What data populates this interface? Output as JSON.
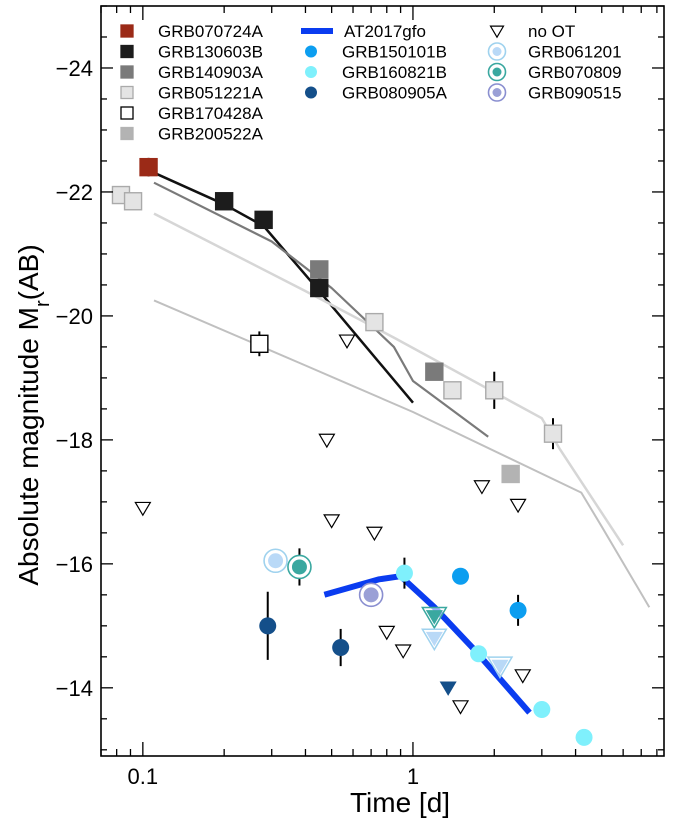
{
  "chart_data": {
    "type": "scatter",
    "title": "",
    "xlabel": "Time [d]",
    "ylabel_main": "Absolute magnitude  M",
    "ylabel_sub": "r",
    "ylabel_tail": "(AB)",
    "x_scale": "log",
    "xlim": [
      0.07,
      8.5
    ],
    "ylim": [
      -12.9,
      -25
    ],
    "y_inverted": true,
    "x_ticks": [
      {
        "value": 0.1,
        "label": "0.1"
      },
      {
        "value": 1,
        "label": "1"
      }
    ],
    "y_ticks": [
      {
        "value": -24,
        "label": "−24"
      },
      {
        "value": -22,
        "label": "−22"
      },
      {
        "value": -20,
        "label": "−20"
      },
      {
        "value": -18,
        "label": "−18"
      },
      {
        "value": -16,
        "label": "−16"
      },
      {
        "value": -14,
        "label": "−14"
      }
    ],
    "legend": [
      {
        "label": "GRB070724A",
        "marker": "square",
        "color": "#9b2a17",
        "col": 0,
        "row": 0
      },
      {
        "label": "GRB130603B",
        "marker": "square",
        "color": "#1c1c1c",
        "col": 0,
        "row": 1
      },
      {
        "label": "GRB140903A",
        "marker": "square",
        "color": "#7a7a7a",
        "col": 0,
        "row": 2
      },
      {
        "label": "GRB051221A",
        "marker": "square",
        "color": "#e4e4e4",
        "stroke": "#aaaaaa",
        "col": 0,
        "row": 3
      },
      {
        "label": "GRB170428A",
        "marker": "square-open",
        "color": "#ffffff",
        "stroke": "#000000",
        "col": 0,
        "row": 4
      },
      {
        "label": "GRB200522A",
        "marker": "square",
        "color": "#b3b3b3",
        "col": 0,
        "row": 5
      },
      {
        "label": "AT2017gfo",
        "marker": "line",
        "color": "#0a3cf0",
        "col": 1,
        "row": 0
      },
      {
        "label": "GRB150101B",
        "marker": "circle",
        "color": "#0c9ef0",
        "col": 1,
        "row": 1
      },
      {
        "label": "GRB160821B",
        "marker": "circle",
        "color": "#7ff0fc",
        "col": 1,
        "row": 2
      },
      {
        "label": "GRB080905A",
        "marker": "circle",
        "color": "#144f8a",
        "col": 1,
        "row": 3
      },
      {
        "label": "no OT",
        "marker": "triangle-open",
        "color": "#ffffff",
        "stroke": "#000000",
        "col": 2,
        "row": 0
      },
      {
        "label": "GRB061201",
        "marker": "ringed",
        "color": "#b9d9f7",
        "ring": "#9fd2ee",
        "col": 2,
        "row": 1
      },
      {
        "label": "GRB070809",
        "marker": "ringed",
        "color": "#3aa8a0",
        "ring": "#3aa8a0",
        "col": 2,
        "row": 2
      },
      {
        "label": "GRB090515",
        "marker": "ringed",
        "color": "#9aa0d6",
        "ring": "#8a8fd0",
        "col": 2,
        "row": 3
      }
    ],
    "models": [
      {
        "name": "GRB130603B",
        "color": "#111111",
        "width": 2.5,
        "x": [
          0.105,
          0.2,
          0.28,
          0.45,
          1.0
        ],
        "y": [
          -22.35,
          -21.8,
          -21.45,
          -20.4,
          -18.6
        ]
      },
      {
        "name": "GRB140903A",
        "color": "#7a7a7a",
        "width": 2.2,
        "x": [
          0.11,
          0.3,
          0.5,
          0.85,
          1.0,
          1.9
        ],
        "y": [
          -22.15,
          -21.2,
          -20.45,
          -19.5,
          -18.95,
          -18.05
        ]
      },
      {
        "name": "GRB051221A",
        "color": "#d6d6d6",
        "width": 2.5,
        "x": [
          0.11,
          0.4,
          0.85,
          3.0,
          3.5,
          6.0
        ],
        "y": [
          -21.65,
          -20.4,
          -19.65,
          -18.35,
          -17.85,
          -16.3
        ]
      },
      {
        "name": "GRB170428A",
        "color": "#c0c0c0",
        "width": 2.0,
        "x": [
          0.11,
          0.4,
          1.0,
          4.2,
          5.0,
          7.5
        ],
        "y": [
          -20.25,
          -19.2,
          -18.45,
          -17.15,
          -16.6,
          -15.3
        ]
      }
    ],
    "at2017gfo": {
      "name": "AT2017gfo",
      "color": "#0a3cf0",
      "width": 6,
      "x": [
        0.47,
        0.75,
        0.9,
        1.2,
        1.7,
        2.7
      ],
      "y": [
        -15.5,
        -15.75,
        -15.8,
        -15.3,
        -14.6,
        -13.6
      ]
    },
    "squares": [
      {
        "name": "GRB070724A",
        "x": 0.105,
        "y": -22.4,
        "fill": "#9b2a17",
        "stroke": "#9b2a17",
        "err": 0.15
      },
      {
        "name": "GRB130603B",
        "x": 0.2,
        "y": -21.85,
        "fill": "#1c1c1c",
        "stroke": "#1c1c1c"
      },
      {
        "name": "GRB130603B",
        "x": 0.28,
        "y": -21.55,
        "fill": "#1c1c1c",
        "stroke": "#1c1c1c"
      },
      {
        "name": "GRB130603B",
        "x": 0.45,
        "y": -20.45,
        "fill": "#1c1c1c",
        "stroke": "#1c1c1c"
      },
      {
        "name": "GRB140903A",
        "x": 0.45,
        "y": -20.75,
        "fill": "#7a7a7a",
        "stroke": "#7a7a7a"
      },
      {
        "name": "GRB140903A",
        "x": 1.2,
        "y": -19.1,
        "fill": "#7a7a7a",
        "stroke": "#7a7a7a"
      },
      {
        "name": "GRB051221A",
        "x": 0.083,
        "y": -21.95,
        "fill": "#e4e4e4",
        "stroke": "#aaaaaa"
      },
      {
        "name": "GRB051221A",
        "x": 0.092,
        "y": -21.85,
        "fill": "#e4e4e4",
        "stroke": "#aaaaaa"
      },
      {
        "name": "GRB051221A",
        "x": 0.72,
        "y": -19.9,
        "fill": "#e4e4e4",
        "stroke": "#aaaaaa"
      },
      {
        "name": "GRB051221A",
        "x": 1.4,
        "y": -18.8,
        "fill": "#e4e4e4",
        "stroke": "#aaaaaa"
      },
      {
        "name": "GRB051221A",
        "x": 2.0,
        "y": -18.8,
        "fill": "#e4e4e4",
        "stroke": "#aaaaaa",
        "err": 0.3
      },
      {
        "name": "GRB051221A",
        "x": 3.3,
        "y": -18.1,
        "fill": "#e4e4e4",
        "stroke": "#aaaaaa",
        "err": 0.25
      },
      {
        "name": "GRB170428A",
        "x": 0.27,
        "y": -19.55,
        "fill": "#ffffff",
        "stroke": "#000000",
        "err": 0.2
      },
      {
        "name": "GRB200522A",
        "x": 2.3,
        "y": -17.45,
        "fill": "#b3b3b3",
        "stroke": "#b3b3b3"
      }
    ],
    "upper_limits": [
      {
        "x": 0.1,
        "y": -16.9
      },
      {
        "x": 0.57,
        "y": -19.6
      },
      {
        "x": 0.48,
        "y": -18.0
      },
      {
        "x": 0.5,
        "y": -16.7
      },
      {
        "x": 0.72,
        "y": -16.5
      },
      {
        "x": 0.8,
        "y": -14.9
      },
      {
        "x": 0.92,
        "y": -14.6
      },
      {
        "x": 1.5,
        "y": -13.7
      },
      {
        "x": 1.8,
        "y": -17.25
      },
      {
        "x": 2.45,
        "y": -16.95
      },
      {
        "x": 2.55,
        "y": -14.2
      }
    ],
    "circles": [
      {
        "name": "GRB080905A",
        "x": 0.29,
        "y": -15.0,
        "fill": "#144f8a",
        "err": 0.55
      },
      {
        "name": "GRB080905A",
        "x": 0.54,
        "y": -14.65,
        "fill": "#144f8a",
        "err": 0.3
      },
      {
        "name": "GRB150101B",
        "x": 1.5,
        "y": -15.8,
        "fill": "#0c9ef0"
      },
      {
        "name": "GRB150101B",
        "x": 2.45,
        "y": -15.25,
        "fill": "#0c9ef0",
        "err": 0.25
      },
      {
        "name": "GRB160821B",
        "x": 0.93,
        "y": -15.85,
        "fill": "#7ff0fc",
        "err": 0.25
      },
      {
        "name": "GRB160821B",
        "x": 1.75,
        "y": -14.55,
        "fill": "#7ff0fc"
      },
      {
        "name": "GRB160821B",
        "x": 3.0,
        "y": -13.65,
        "fill": "#7ff0fc"
      },
      {
        "name": "GRB160821B",
        "x": 4.3,
        "y": -13.2,
        "fill": "#7ff0fc"
      }
    ],
    "ringed": [
      {
        "name": "GRB061201",
        "x": 0.31,
        "y": -16.05,
        "fill": "#b9d9f7",
        "ring": "#9fd2ee"
      },
      {
        "name": "GRB070809",
        "x": 0.38,
        "y": -15.95,
        "fill": "#3aa8a0",
        "ring": "#3aa8a0",
        "err": 0.3
      },
      {
        "name": "GRB090515",
        "x": 0.7,
        "y": -15.5,
        "fill": "#9aa0d6",
        "ring": "#8a8fd0"
      }
    ],
    "filled_triangles": [
      {
        "name": "GRB070809",
        "x": 1.2,
        "y": -15.15,
        "fill": "#3aa8a0",
        "ring": "#3aa8a0"
      },
      {
        "name": "GRB061201",
        "x": 1.2,
        "y": -14.8,
        "fill": "#b9d9f7",
        "ring": "#9fd2ee"
      },
      {
        "name": "GRB061201",
        "x": 2.1,
        "y": -14.35,
        "fill": "#b9d9f7",
        "ring": "#9fd2ee"
      },
      {
        "name": "GRB080905A",
        "x": 1.35,
        "y": -14.0,
        "fill": "#144f8a",
        "ring": null
      }
    ]
  }
}
